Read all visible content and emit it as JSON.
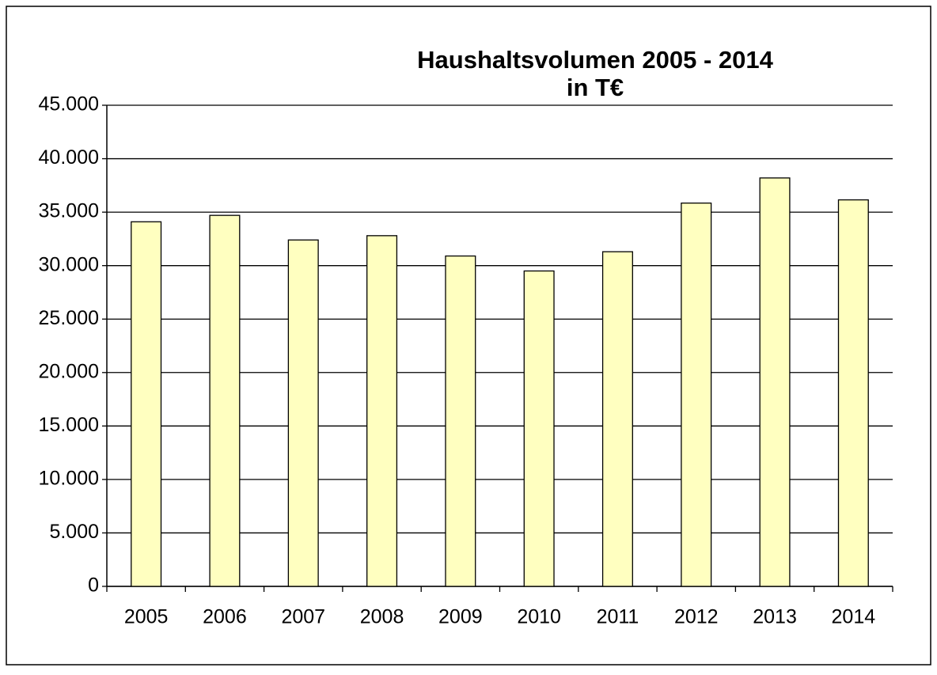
{
  "chart_data": {
    "type": "bar",
    "title": "Haushaltsvolumen 2005 - 2014",
    "subtitle": "in T€",
    "categories": [
      "2005",
      "2006",
      "2007",
      "2008",
      "2009",
      "2010",
      "2011",
      "2012",
      "2013",
      "2014"
    ],
    "values": [
      34100,
      34700,
      32400,
      32800,
      30900,
      29500,
      31300,
      35850,
      38200,
      36150
    ],
    "color": "#ffffc0",
    "ylim": [
      0,
      45000
    ],
    "yticks": [
      0,
      {
        "value": 5000,
        "label": "5.000"
      },
      {
        "value": 10000,
        "label": "10.000"
      },
      {
        "value": 15000,
        "label": "15.000"
      },
      {
        "value": 20000,
        "label": "20.000"
      },
      {
        "value": 25000,
        "label": "25.000"
      },
      {
        "value": 30000,
        "label": "30.000"
      },
      {
        "value": 35000,
        "label": "35.000"
      },
      {
        "value": 40000,
        "label": "40.000"
      },
      {
        "value": 45000,
        "label": "45.000"
      }
    ],
    "grid": true
  }
}
